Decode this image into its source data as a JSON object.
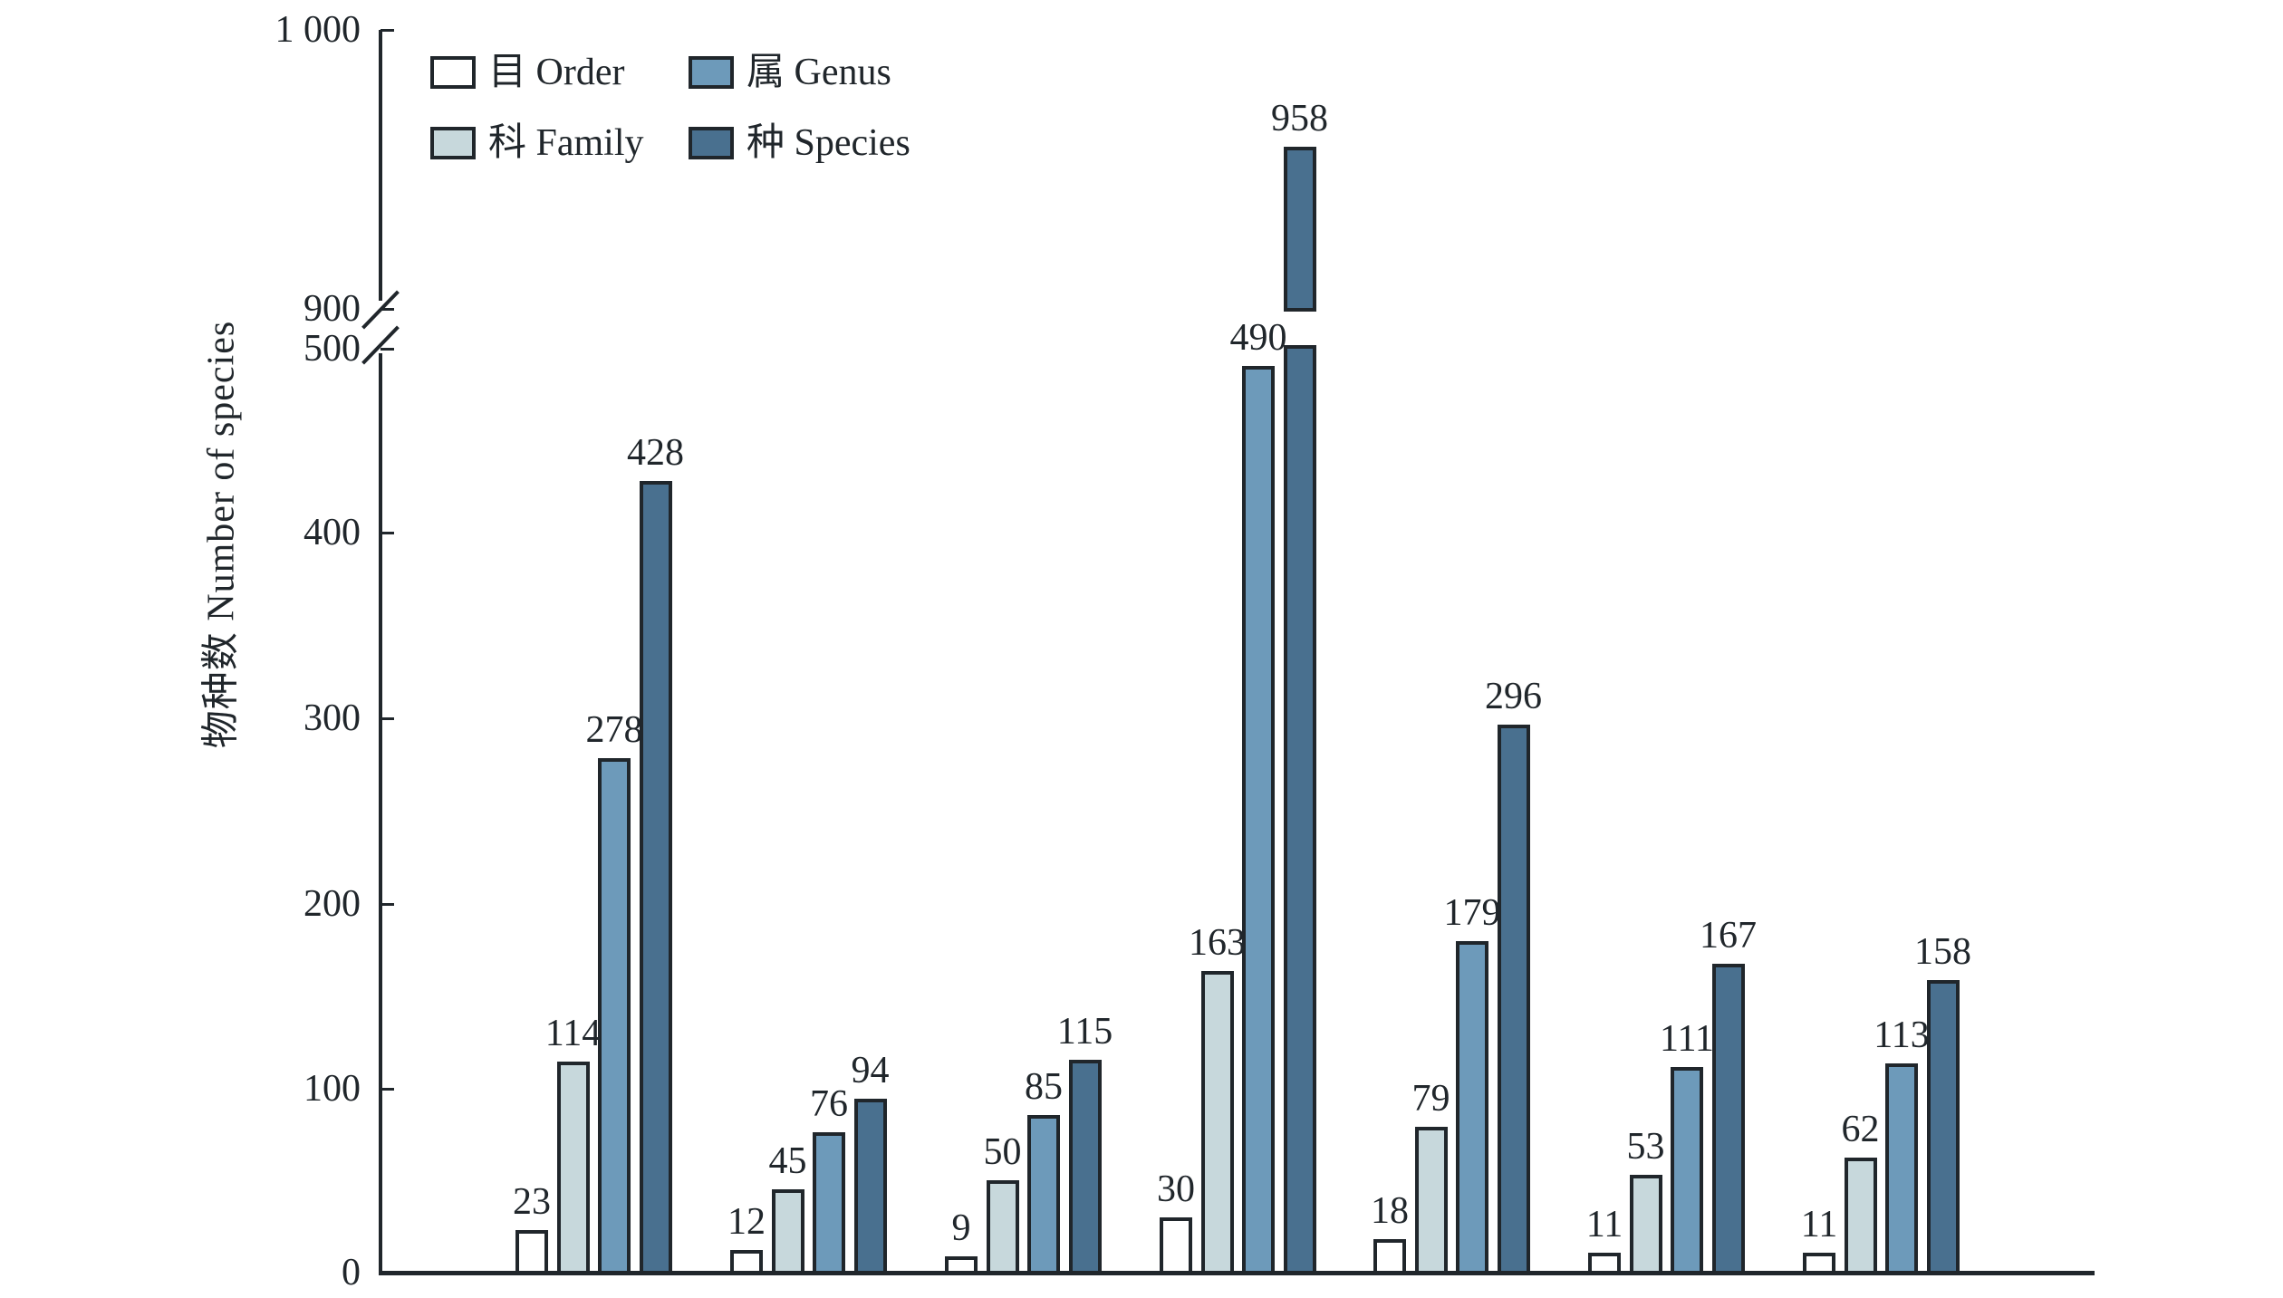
{
  "chart_data": {
    "type": "bar",
    "title": "",
    "ylabel": "物种数 Number of species",
    "categories": [
      "",
      "",
      "",
      "",
      "",
      "",
      ""
    ],
    "yticks": [
      "1 000",
      "900",
      "500",
      "400",
      "300",
      "200",
      "100",
      "0"
    ],
    "axis_break": {
      "lower_range": [
        0,
        500
      ],
      "upper_range": [
        900,
        1000
      ]
    },
    "grid": "off",
    "legend_position": "top-left-inside",
    "ink_color": "#20262b",
    "series": [
      {
        "name": "目 Order",
        "color": "#ffffff",
        "values": [
          23,
          12,
          9,
          30,
          18,
          11,
          11
        ]
      },
      {
        "name": "科 Family",
        "color": "#c7d8dc",
        "values": [
          114,
          45,
          50,
          163,
          79,
          53,
          62
        ]
      },
      {
        "name": "属 Genus",
        "color": "#6d9aba",
        "values": [
          278,
          76,
          85,
          490,
          179,
          111,
          113
        ]
      },
      {
        "name": "种 Species",
        "color": "#49708f",
        "values": [
          428,
          94,
          115,
          958,
          296,
          167,
          158
        ]
      }
    ],
    "bar_value_labels": [
      [
        23,
        114,
        278,
        428
      ],
      [
        12,
        45,
        76,
        94
      ],
      [
        9,
        50,
        85,
        115
      ],
      [
        30,
        163,
        490,
        958
      ],
      [
        18,
        79,
        179,
        296
      ],
      [
        11,
        53,
        111,
        167
      ],
      [
        11,
        62,
        113,
        158
      ]
    ]
  }
}
